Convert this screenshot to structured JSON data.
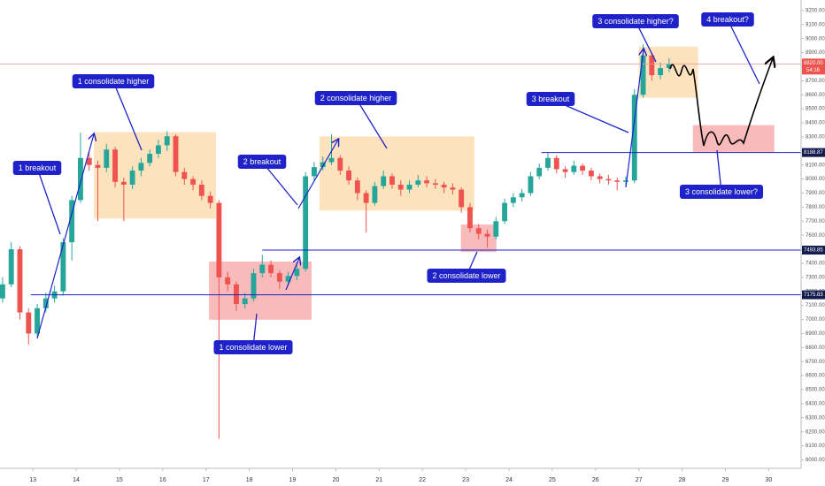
{
  "chart_data": {
    "type": "candlestick",
    "x": [
      12.3,
      12.5,
      12.7,
      12.9,
      13.1,
      13.3,
      13.5,
      13.7,
      13.9,
      14.1,
      14.3,
      14.5,
      14.7,
      14.9,
      15.1,
      15.3,
      15.5,
      15.7,
      15.9,
      16.1,
      16.3,
      16.5,
      16.7,
      16.9,
      17.1,
      17.3,
      17.5,
      17.7,
      17.9,
      18.1,
      18.3,
      18.5,
      18.7,
      18.9,
      19.1,
      19.3,
      19.5,
      19.7,
      19.9,
      20.1,
      20.3,
      20.5,
      20.7,
      20.9,
      21.1,
      21.3,
      21.5,
      21.7,
      21.9,
      22.1,
      22.3,
      22.5,
      22.7,
      22.9,
      23.1,
      23.3,
      23.5,
      23.7,
      23.9,
      24.1,
      24.3,
      24.5,
      24.7,
      24.9,
      25.1,
      25.3,
      25.5,
      25.7,
      25.9,
      26.1,
      26.3,
      26.5,
      26.7,
      26.9,
      27.1,
      27.3,
      27.5,
      27.7
    ],
    "candles": [
      [
        7150,
        7300,
        7120,
        7250
      ],
      [
        7250,
        7550,
        7230,
        7500
      ],
      [
        7500,
        7520,
        7000,
        7050
      ],
      [
        7050,
        7080,
        6820,
        6900
      ],
      [
        6900,
        7110,
        6880,
        7080
      ],
      [
        7080,
        7190,
        7050,
        7150
      ],
      [
        7150,
        7240,
        7120,
        7200
      ],
      [
        7200,
        7580,
        7170,
        7550
      ],
      [
        7550,
        7880,
        7420,
        7850
      ],
      [
        7850,
        8330,
        7830,
        8150
      ],
      [
        8150,
        8190,
        8060,
        8100
      ],
      [
        8100,
        8130,
        7700,
        8080
      ],
      [
        8080,
        8250,
        8050,
        8210
      ],
      [
        8210,
        8230,
        7940,
        7980
      ],
      [
        7980,
        8010,
        7700,
        7960
      ],
      [
        7960,
        8090,
        7930,
        8060
      ],
      [
        8060,
        8150,
        8020,
        8115
      ],
      [
        8115,
        8210,
        8090,
        8180
      ],
      [
        8180,
        8280,
        8150,
        8240
      ],
      [
        8240,
        8340,
        8200,
        8305
      ],
      [
        8305,
        8320,
        8020,
        8050
      ],
      [
        8050,
        8080,
        7960,
        8000
      ],
      [
        8000,
        8020,
        7920,
        7960
      ],
      [
        7960,
        7990,
        7850,
        7880
      ],
      [
        7880,
        7910,
        7790,
        7830
      ],
      [
        7830,
        7850,
        6150,
        7300
      ],
      [
        7300,
        7340,
        7200,
        7250
      ],
      [
        7250,
        7270,
        7060,
        7110
      ],
      [
        7110,
        7190,
        7080,
        7150
      ],
      [
        7150,
        7360,
        7130,
        7330
      ],
      [
        7330,
        7460,
        7300,
        7390
      ],
      [
        7390,
        7420,
        7300,
        7330
      ],
      [
        7330,
        7350,
        7220,
        7270
      ],
      [
        7270,
        7340,
        7240,
        7310
      ],
      [
        7310,
        7400,
        7280,
        7360
      ],
      [
        7360,
        8050,
        7340,
        8020
      ],
      [
        8020,
        8120,
        7990,
        8085
      ],
      [
        8085,
        8160,
        8060,
        8120
      ],
      [
        8120,
        8320,
        8100,
        8150
      ],
      [
        8150,
        8170,
        8030,
        8060
      ],
      [
        8060,
        8090,
        7960,
        7990
      ],
      [
        7990,
        8010,
        7850,
        7900
      ],
      [
        7900,
        7920,
        7620,
        7830
      ],
      [
        7830,
        7980,
        7810,
        7950
      ],
      [
        7950,
        8060,
        7930,
        8020
      ],
      [
        8020,
        8040,
        7930,
        7960
      ],
      [
        7960,
        7990,
        7880,
        7925
      ],
      [
        7925,
        7990,
        7900,
        7960
      ],
      [
        7960,
        8030,
        7940,
        7990
      ],
      [
        7990,
        8020,
        7940,
        7970
      ],
      [
        7970,
        8000,
        7930,
        7960
      ],
      [
        7960,
        7980,
        7900,
        7940
      ],
      [
        7940,
        7970,
        7890,
        7925
      ],
      [
        7925,
        7940,
        7760,
        7800
      ],
      [
        7800,
        7830,
        7620,
        7650
      ],
      [
        7650,
        7680,
        7570,
        7610
      ],
      [
        7610,
        7640,
        7510,
        7590
      ],
      [
        7590,
        7730,
        7570,
        7700
      ],
      [
        7700,
        7860,
        7680,
        7830
      ],
      [
        7830,
        7900,
        7800,
        7870
      ],
      [
        7870,
        7930,
        7840,
        7900
      ],
      [
        7900,
        8050,
        7880,
        8020
      ],
      [
        8020,
        8110,
        8000,
        8080
      ],
      [
        8080,
        8190,
        8060,
        8150
      ],
      [
        8150,
        8170,
        8040,
        8070
      ],
      [
        8070,
        8090,
        8010,
        8050
      ],
      [
        8050,
        8130,
        8030,
        8095
      ],
      [
        8095,
        8110,
        8030,
        8060
      ],
      [
        8060,
        8080,
        7990,
        8020
      ],
      [
        8020,
        8040,
        7970,
        8000
      ],
      [
        8000,
        8030,
        7960,
        7990
      ],
      [
        7990,
        8010,
        7920,
        7980
      ],
      [
        7980,
        8020,
        7950,
        7990
      ],
      [
        7990,
        8640,
        7970,
        8600
      ],
      [
        8600,
        8960,
        8580,
        8880
      ],
      [
        8880,
        8900,
        8700,
        8740
      ],
      [
        8740,
        8830,
        8710,
        8790
      ],
      [
        8790,
        8860,
        8760,
        8820
      ]
    ],
    "up_color": "#26a69a",
    "down_color": "#ef5350",
    "xlim": [
      12.24,
      30.75
    ],
    "xticks": [
      13,
      14,
      15,
      16,
      17,
      18,
      19,
      20,
      21,
      22,
      23,
      24,
      25,
      26,
      27,
      28,
      29,
      30
    ],
    "ylim": [
      5940,
      9275
    ],
    "yticks": [
      {
        "value": 6000,
        "label": "6000.00"
      },
      {
        "value": 6100,
        "label": "6100.00"
      },
      {
        "value": 6200,
        "label": "6200.00"
      },
      {
        "value": 6300,
        "label": "6300.00"
      },
      {
        "value": 6400,
        "label": "6400.00"
      },
      {
        "value": 6500,
        "label": "6500.00"
      },
      {
        "value": 6600,
        "label": "6600.00"
      },
      {
        "value": 6700,
        "label": "6700.00"
      },
      {
        "value": 6800,
        "label": "6800.00"
      },
      {
        "value": 6900,
        "label": "6900.00"
      },
      {
        "value": 7000,
        "label": "7000.00"
      },
      {
        "value": 7100,
        "label": "7100.00"
      },
      {
        "value": 7200,
        "label": "7200.00"
      },
      {
        "value": 7300,
        "label": "7300.00"
      },
      {
        "value": 7400,
        "label": "7400.00"
      },
      {
        "value": 7500,
        "label": "7500.00"
      },
      {
        "value": 7600,
        "label": "7600.00"
      },
      {
        "value": 7700,
        "label": "7700.00"
      },
      {
        "value": 7800,
        "label": "7800.00"
      },
      {
        "value": 7900,
        "label": "7900.00"
      },
      {
        "value": 8000,
        "label": "8000.00"
      },
      {
        "value": 8100,
        "label": "8100.00"
      },
      {
        "value": 8200,
        "label": "8200.00"
      },
      {
        "value": 8300,
        "label": "8300.00"
      },
      {
        "value": 8400,
        "label": "8400.00"
      },
      {
        "value": 8500,
        "label": "8500.00"
      },
      {
        "value": 8600,
        "label": "8600.00"
      },
      {
        "value": 8700,
        "label": "8700.00"
      },
      {
        "value": 8800,
        "label": "8800.00"
      },
      {
        "value": 8900,
        "label": "8900.00"
      },
      {
        "value": 9000,
        "label": "9000.00"
      },
      {
        "value": 9100,
        "label": "9100.00"
      },
      {
        "value": 9200,
        "label": "9200.00"
      }
    ],
    "levels": [
      {
        "price": 8188.87,
        "from": 24.75,
        "color": "#1e22c8"
      },
      {
        "price": 7493.85,
        "from": 18.3,
        "color": "#1e22c8"
      },
      {
        "price": 7175.83,
        "from": 12.95,
        "color": "#1e22c8"
      }
    ],
    "last_price": {
      "value": 8820,
      "label": "8820.00"
    },
    "countdown": "54:16",
    "zones": [
      {
        "x": [
          14.41,
          17.23
        ],
        "y": [
          7719,
          8334
        ],
        "color": "#fbd9a8"
      },
      {
        "x": [
          17.07,
          19.44
        ],
        "y": [
          6998,
          7412
        ],
        "color": "#f5a3a3"
      },
      {
        "x": [
          19.62,
          23.2
        ],
        "y": [
          7776,
          8303
        ],
        "color": "#fbd9a8"
      },
      {
        "x": [
          22.89,
          23.71
        ],
        "y": [
          7481,
          7676
        ],
        "color": "#f5a3a3"
      },
      {
        "x": [
          27.0,
          28.37
        ],
        "y": [
          8579,
          8943
        ],
        "color": "#fbd9a8"
      },
      {
        "x": [
          28.25,
          30.13
        ],
        "y": [
          8190,
          8384
        ],
        "color": "#f5a3a3"
      }
    ],
    "annotations": [
      "1 breakout",
      "1 consolidate higher",
      "2 breakout",
      "1 consolidate lower",
      "2 consolidate higher",
      "2 consolidate lower",
      "3 breakout",
      "3 consolidate higher?",
      "4 breakout?",
      "3 consolidate lower?"
    ]
  }
}
